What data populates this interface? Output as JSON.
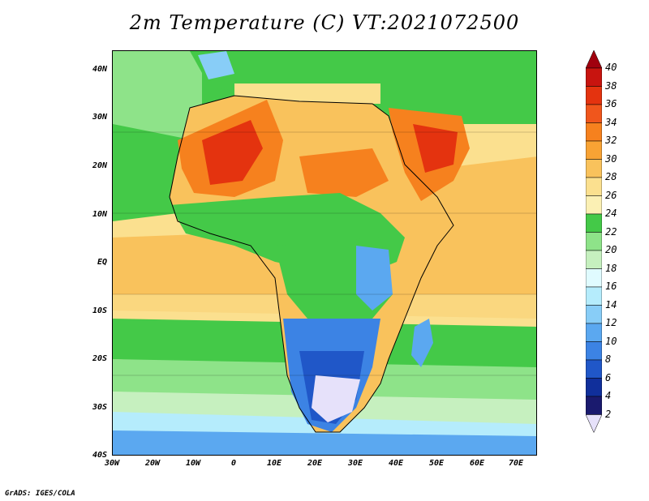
{
  "title": "2m Temperature (C) VT:2021072500",
  "footer": "GrADS: IGES/COLA",
  "lat_labels": [
    "40N",
    "30N",
    "20N",
    "10N",
    "EQ",
    "10S",
    "20S",
    "30S",
    "40S"
  ],
  "lon_labels": [
    "30W",
    "20W",
    "10W",
    "0",
    "10E",
    "20E",
    "30E",
    "40E",
    "50E",
    "60E",
    "70E"
  ],
  "colorbar": {
    "labels": [
      "40",
      "38",
      "36",
      "34",
      "32",
      "30",
      "28",
      "26",
      "24",
      "22",
      "20",
      "18",
      "16",
      "14",
      "12",
      "10",
      "8",
      "6",
      "4",
      "2"
    ],
    "colors": [
      "#a0000e",
      "#c8140f",
      "#e4330f",
      "#f0561c",
      "#f6811e",
      "#f8a334",
      "#f9c25c",
      "#fbe08f",
      "#fbf0b4",
      "#44c948",
      "#8ee389",
      "#c6f0bf",
      "#e0fbff",
      "#b5ecfc",
      "#88cdf7",
      "#5ba8f0",
      "#3c83e4",
      "#2057c8",
      "#102f9b",
      "#1a1a6e",
      "#e6e1fa"
    ],
    "arrow_top": "#a0000e",
    "arrow_bottom": "#e6e1fa"
  },
  "map_colors": {
    "ocean_warm": "#f9c25c",
    "ocean_mild": "#fbe08f",
    "ocean_green": "#44c948",
    "ocean_lightgreen": "#8ee389",
    "ocean_pale": "#c6f0bf",
    "ocean_cyan": "#b5ecfc",
    "ocean_blue": "#5ba8f0",
    "sahara_hot": "#e4330f",
    "sahara_orange": "#f6811e",
    "land_green": "#44c948",
    "south_blue": "#3c83e4",
    "south_cold": "#e6e1fa"
  }
}
